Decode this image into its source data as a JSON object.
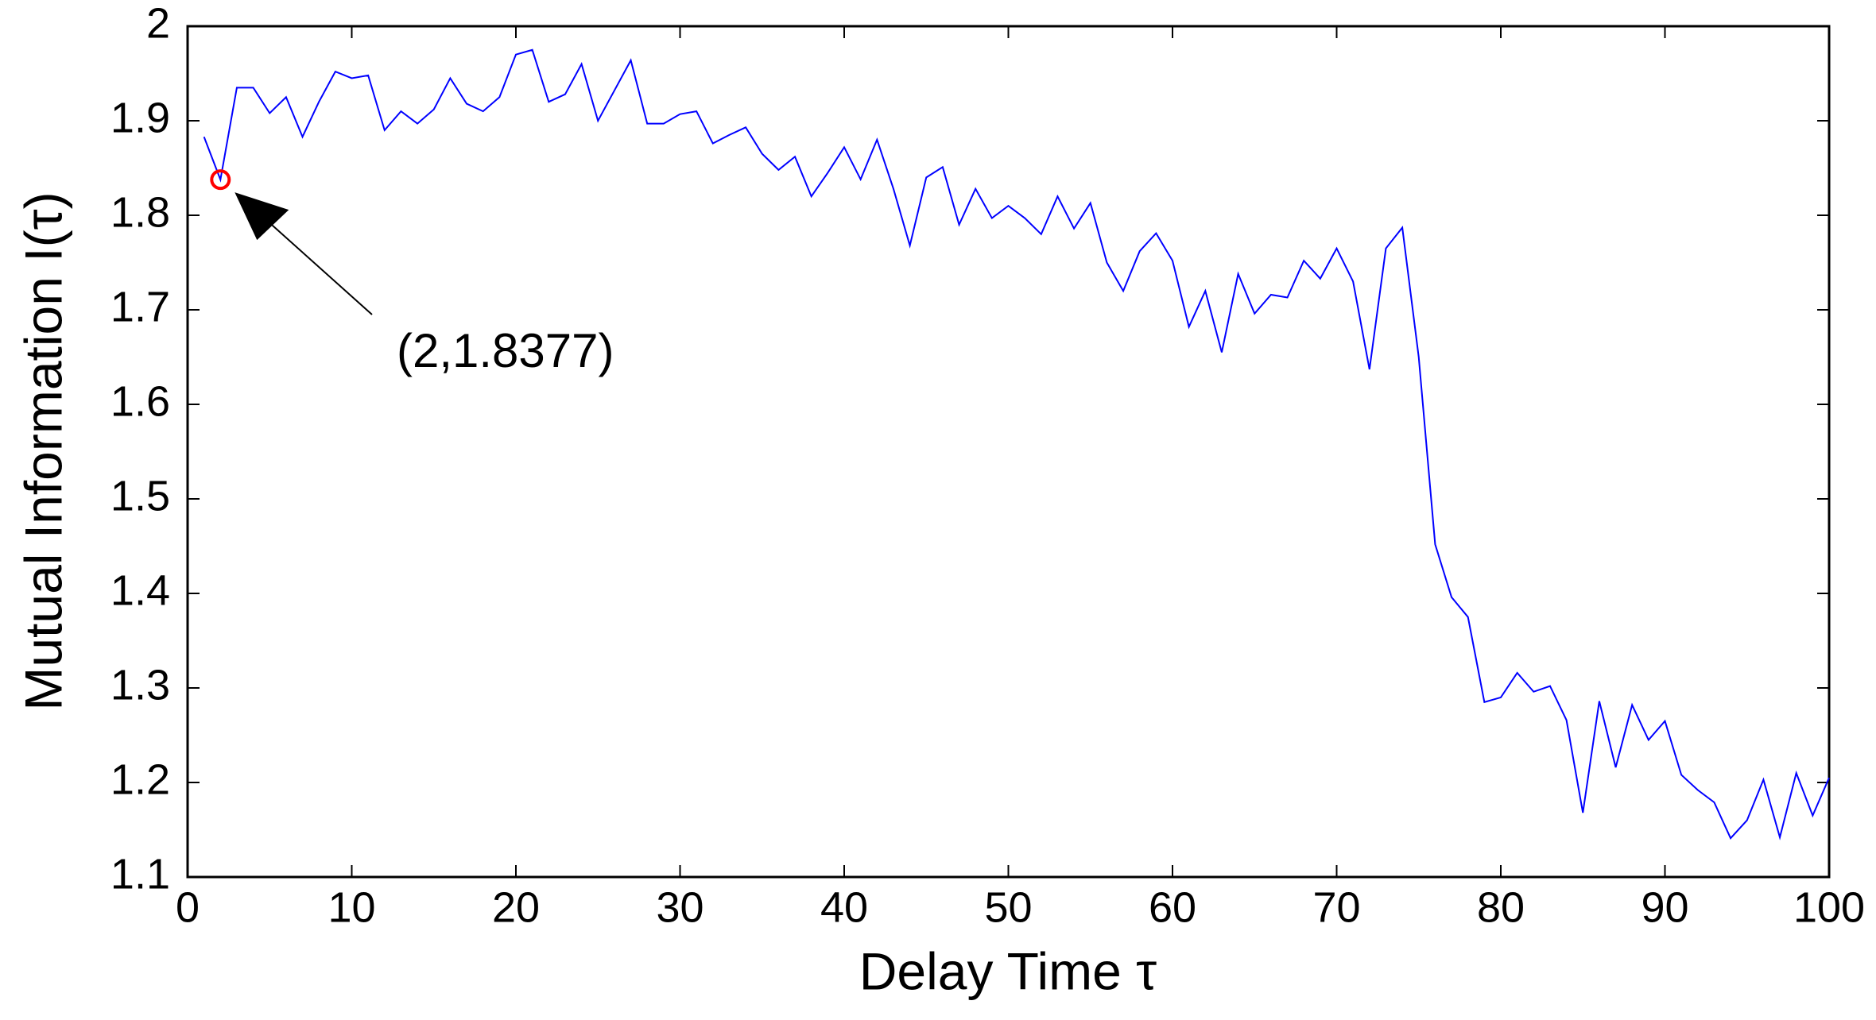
{
  "chart_data": {
    "type": "line",
    "xlabel": "Delay Time τ",
    "ylabel": "Mutual Information I(τ)",
    "x": [
      1,
      2,
      3,
      4,
      5,
      6,
      7,
      8,
      9,
      10,
      11,
      12,
      13,
      14,
      15,
      16,
      17,
      18,
      19,
      20,
      21,
      22,
      23,
      24,
      25,
      26,
      27,
      28,
      29,
      30,
      31,
      32,
      33,
      34,
      35,
      36,
      37,
      38,
      39,
      40,
      41,
      42,
      43,
      44,
      45,
      46,
      47,
      48,
      49,
      50,
      51,
      52,
      53,
      54,
      55,
      56,
      57,
      58,
      59,
      60,
      61,
      62,
      63,
      64,
      65,
      66,
      67,
      68,
      69,
      70,
      71,
      72,
      73,
      74,
      75,
      76,
      77,
      78,
      79,
      80,
      81,
      82,
      83,
      84,
      85,
      86,
      87,
      88,
      89,
      90,
      91,
      92,
      93,
      94,
      95,
      96,
      97,
      98,
      99,
      100
    ],
    "series": [
      {
        "color": "#0000ff",
        "values": [
          1.883,
          1.8377,
          1.935,
          1.935,
          1.908,
          1.925,
          1.883,
          1.92,
          1.952,
          1.945,
          1.948,
          1.89,
          1.91,
          1.897,
          1.912,
          1.945,
          1.918,
          1.91,
          1.925,
          1.97,
          1.975,
          1.92,
          1.928,
          1.96,
          1.9,
          1.932,
          1.964,
          1.897,
          1.897,
          1.907,
          1.91,
          1.876,
          1.885,
          1.893,
          1.865,
          1.848,
          1.862,
          1.82,
          1.845,
          1.872,
          1.838,
          1.88,
          1.828,
          1.768,
          1.84,
          1.851,
          1.79,
          1.828,
          1.797,
          1.81,
          1.797,
          1.78,
          1.82,
          1.786,
          1.813,
          1.75,
          1.72,
          1.762,
          1.781,
          1.752,
          1.682,
          1.72,
          1.655,
          1.738,
          1.696,
          1.716,
          1.713,
          1.752,
          1.733,
          1.765,
          1.73,
          1.637,
          1.765,
          1.787,
          1.65,
          1.452,
          1.396,
          1.375,
          1.285,
          1.29,
          1.316,
          1.296,
          1.302,
          1.266,
          1.168,
          1.286,
          1.216,
          1.282,
          1.245,
          1.265,
          1.208,
          1.192,
          1.179,
          1.141,
          1.16,
          1.203,
          1.142,
          1.21,
          1.165,
          1.205
        ]
      }
    ],
    "xlim": [
      0,
      100
    ],
    "xticks": [
      0,
      10,
      20,
      30,
      40,
      50,
      60,
      70,
      80,
      90,
      100
    ],
    "ylim": [
      1.1,
      2
    ],
    "yticks": [
      1.1,
      1.2,
      1.3,
      1.4,
      1.5,
      1.6,
      1.7,
      1.8,
      1.9,
      2
    ],
    "marker": {
      "x": 2,
      "y": 1.8377,
      "color": "#ff0000",
      "label": "(2,1.8377)"
    }
  }
}
